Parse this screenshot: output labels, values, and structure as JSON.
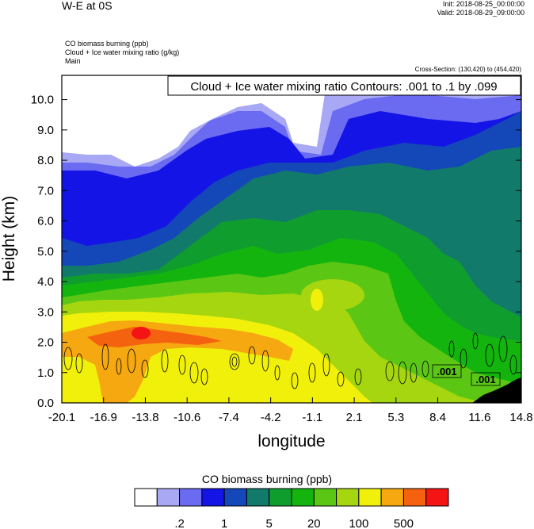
{
  "header": {
    "title": "W-E at 0S",
    "init": "Init: 2018-08-25_00:00:00",
    "valid": "Valid: 2018-08-29_09:00:00",
    "fields": [
      "CO biomass burning   (ppb)",
      "Cloud + Ice water mixing ratio   (g/kg)",
      "Main"
    ],
    "cross_section": "Cross-Section: (130,420) to (454,420)"
  },
  "chart_data": {
    "type": "heatmap",
    "title": "W-E at 0S",
    "xlabel": "longitude",
    "ylabel": "Height (km)",
    "x_ticks": [
      "-20.1",
      "-16.9",
      "-13.8",
      "-10.6",
      "-7.4",
      "-4.2",
      "-1.1",
      "2.1",
      "5.3",
      "8.4",
      "11.6",
      "14.8"
    ],
    "y_ticks": [
      "0.0",
      "1.0",
      "2.0",
      "3.0",
      "4.0",
      "5.0",
      "6.0",
      "7.0",
      "8.0",
      "9.0",
      "10.0"
    ],
    "xlim": [
      -20.1,
      14.8
    ],
    "ylim": [
      0.0,
      10.8
    ],
    "contour_annotation": "Cloud + Ice water mixing ratio Contours: .001 to .1 by .099",
    "contour_labels": [
      ".001",
      ".001"
    ],
    "colorbar": {
      "title": "CO biomass burning  (ppb)",
      "colors": [
        "#ffffff",
        "#a8a8f5",
        "#6b6bf2",
        "#1414e6",
        "#1447b8",
        "#127a6b",
        "#0f9e2e",
        "#14b40f",
        "#5bc714",
        "#a5d60f",
        "#f0f00a",
        "#f5a80f",
        "#f5620f",
        "#f51414"
      ],
      "labels": [
        ".2",
        "1",
        "5",
        "20",
        "100",
        "500"
      ]
    },
    "co_field": {
      "levels": [
        "white",
        "lt-lav",
        "lavender",
        "blue",
        "royal",
        "teal",
        "green-dk",
        "green",
        "lime-dk",
        "lime",
        "yellow",
        "orange",
        "dk-orange",
        "red"
      ],
      "dominant": [
        {
          "region": "surface layer west (-20 to -5 lon, 0-2 km)",
          "value_ppb": 100
        },
        {
          "region": "lower column centre (-1 to 5 lon, 2-4 km)",
          "value_ppb": 20
        },
        {
          "region": "upper troposphere (6-10 km)",
          "value_ppb": 0.5
        },
        {
          "region": "cloud-top voids (8-11 km)",
          "value_ppb": 0.2
        }
      ]
    },
    "grid": false
  }
}
